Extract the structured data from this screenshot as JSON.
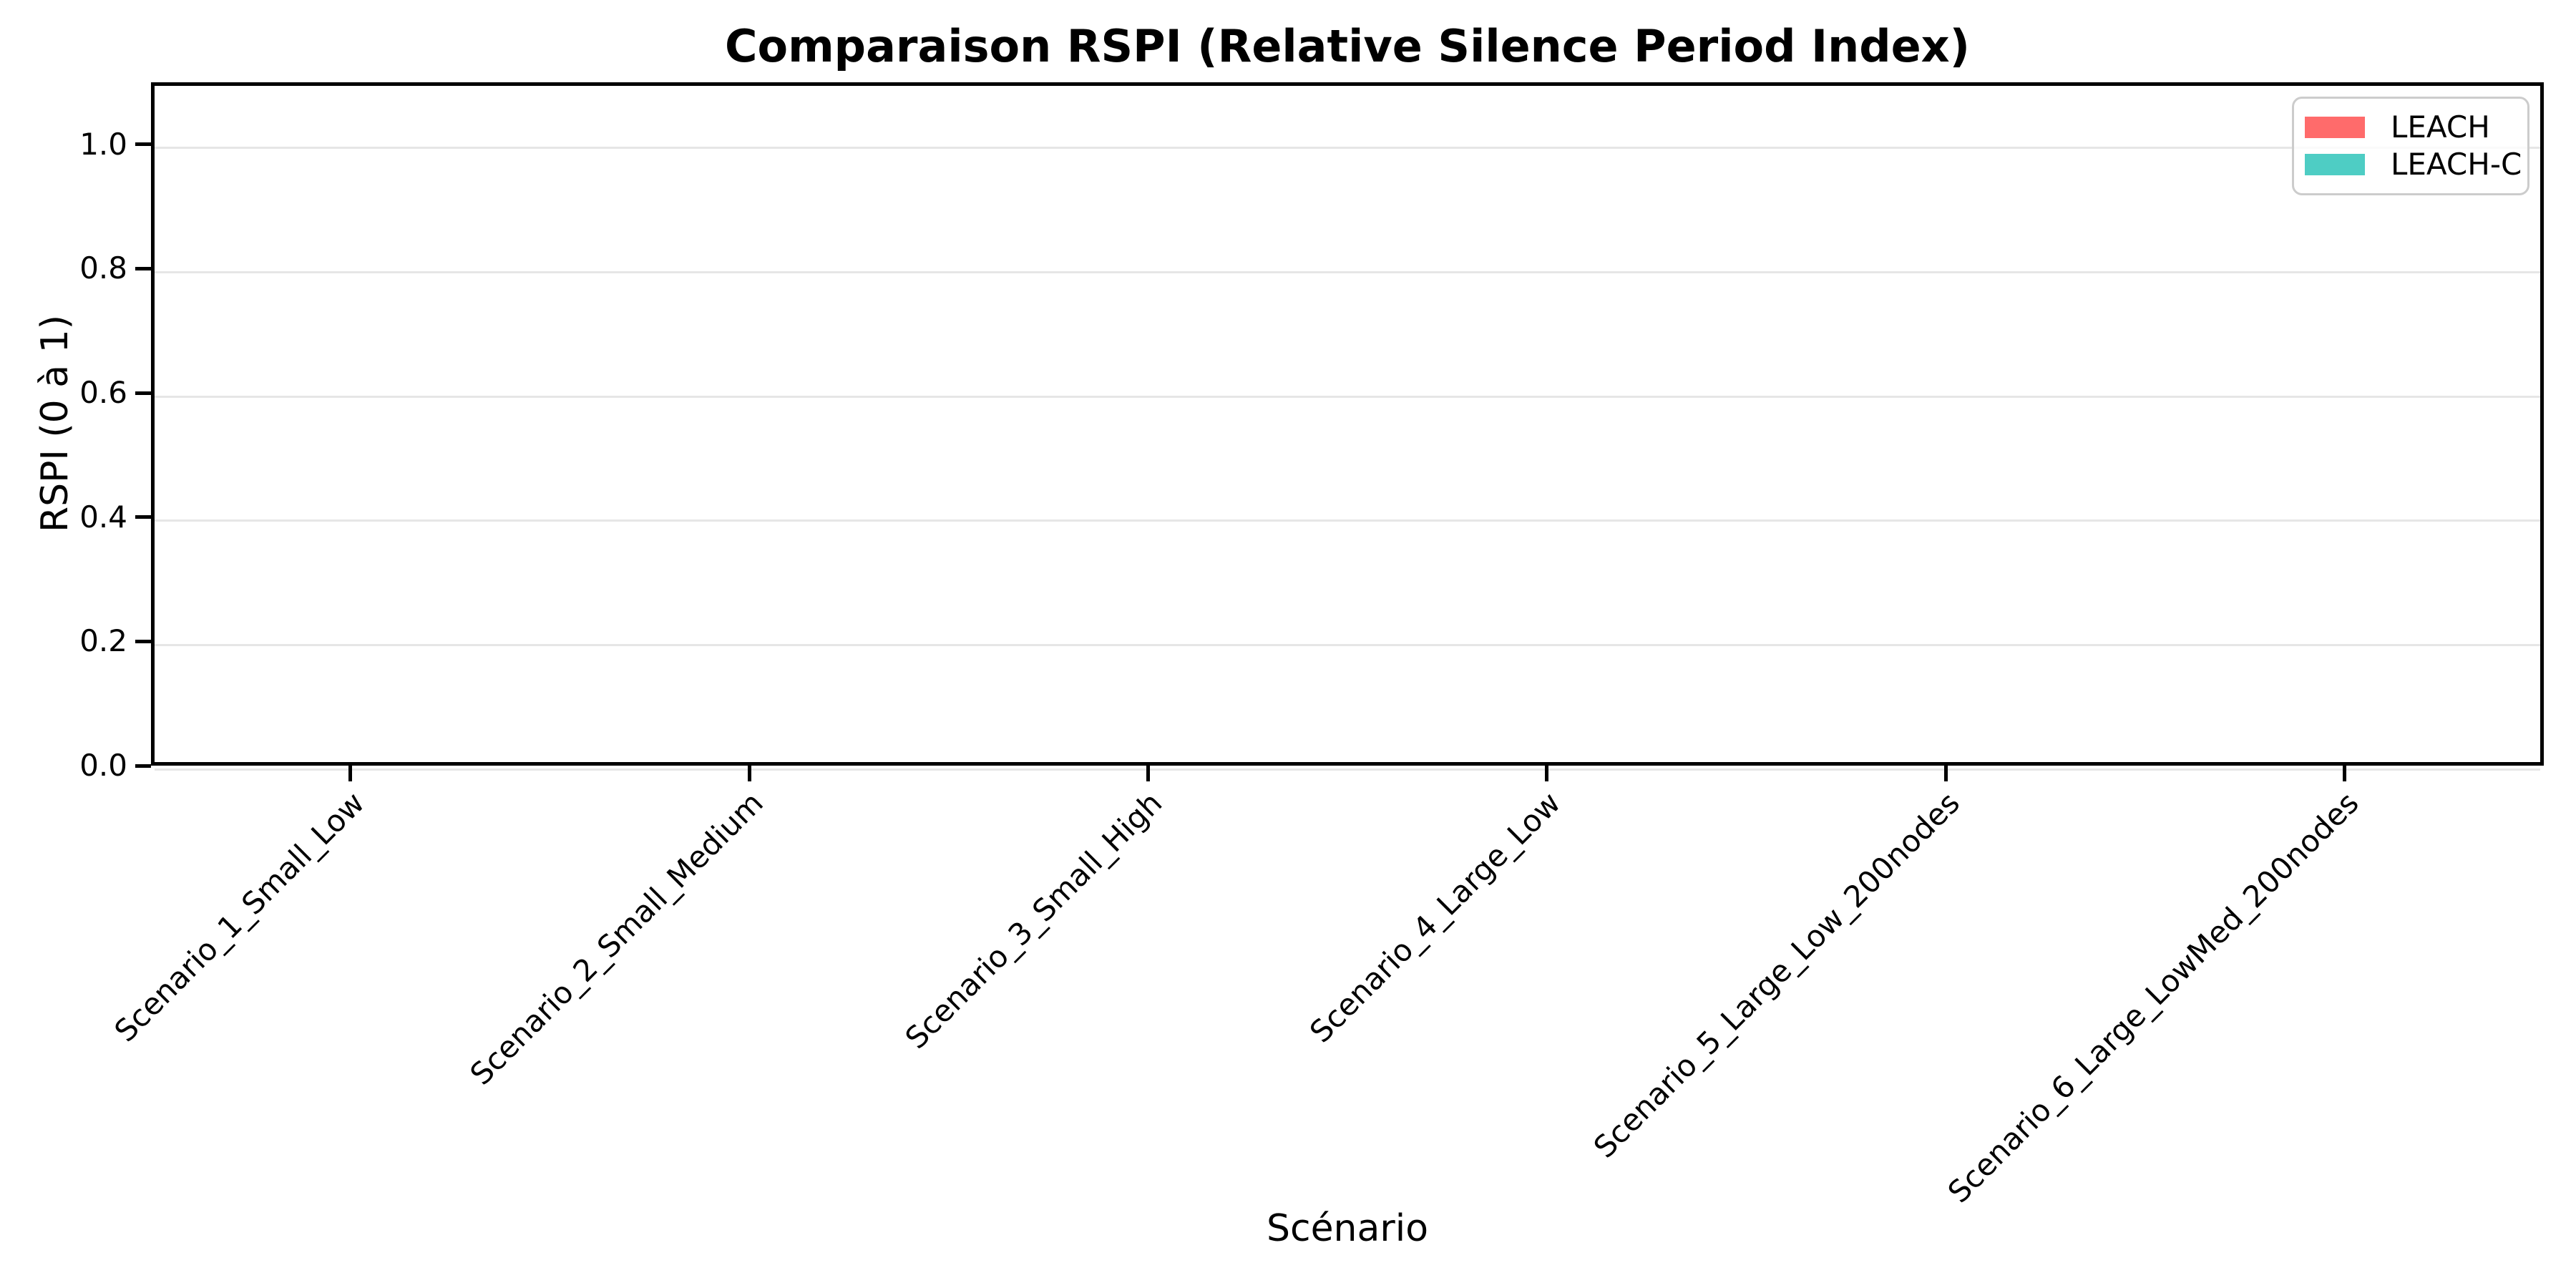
{
  "figure": {
    "title": "Comparaison RSPI (Relative Silence Period Index)",
    "xlabel": "Scénario",
    "ylabel": "RSPI (0 à 1)"
  },
  "chart_data": {
    "type": "bar",
    "title": "Comparaison RSPI (Relative Silence Period Index)",
    "xlabel": "Scénario",
    "ylabel": "RSPI (0 à 1)",
    "categories": [
      "Scenario_1_Small_Low",
      "Scenario_2_Small_Medium",
      "Scenario_3_Small_High",
      "Scenario_4_Large_Low",
      "Scenario_5_Large_Low_200nodes",
      "Scenario_6_Large_LowMed_200nodes"
    ],
    "series": [
      {
        "name": "LEACH",
        "color": "#FF6B6B",
        "values": [
          0,
          0,
          0,
          0,
          0,
          0
        ]
      },
      {
        "name": "LEACH-C",
        "color": "#4ECDC4",
        "values": [
          0,
          0,
          0,
          0,
          0,
          0
        ]
      }
    ],
    "yticks": [
      0.0,
      0.2,
      0.4,
      0.6,
      0.8,
      1.0
    ],
    "ytick_labels": [
      "0.0",
      "0.2",
      "0.4",
      "0.6",
      "0.8",
      "1.0"
    ],
    "ylim": [
      0,
      1.1
    ],
    "grid": "y",
    "grid_color": "#e6e6e6",
    "legend_position": "upper right",
    "x_tick_rotation": 45
  }
}
